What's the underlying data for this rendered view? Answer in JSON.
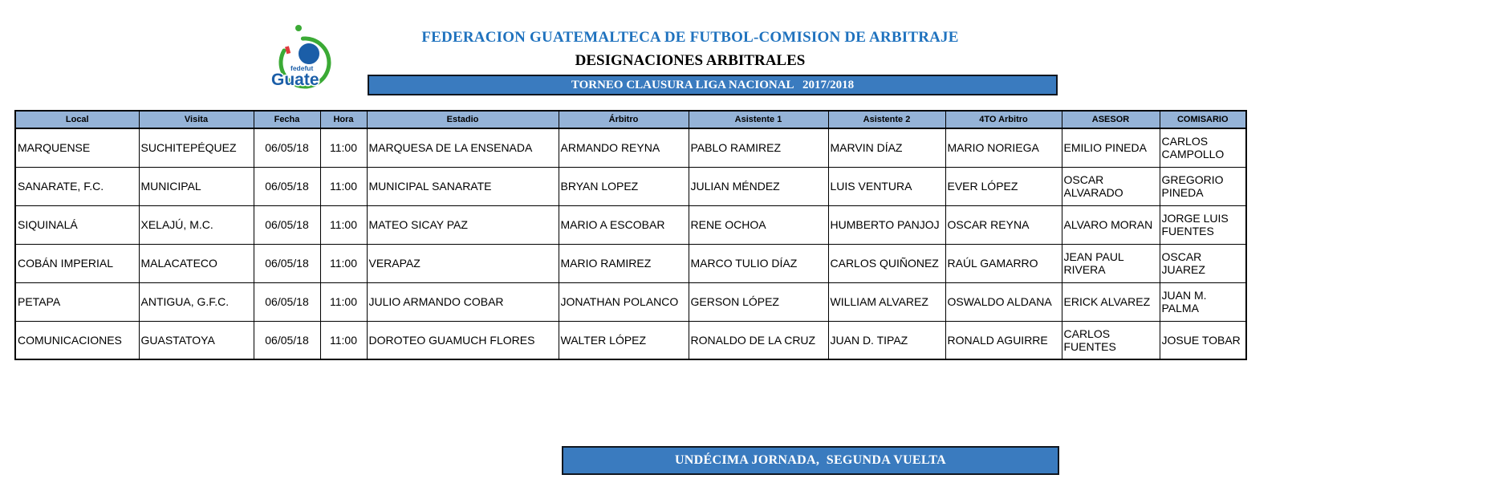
{
  "header": {
    "title": "FEDERACION GUATEMALTECA DE FUTBOL-COMISION DE ARBITRAJE",
    "subtitle": "DESIGNACIONES ARBITRALES",
    "tournament_banner": "TORNEO CLAUSURA LIGA NACIONAL   2017/2018",
    "logo": {
      "top_text": "fedefut",
      "main_text": "Guate"
    }
  },
  "table": {
    "columns": [
      "Local",
      "Visita",
      "Fecha",
      "Hora",
      "Estadio",
      "Árbitro",
      "Asistente 1",
      "Asistente 2",
      "4TO Arbitro",
      "ASESOR",
      "COMISARIO"
    ],
    "rows": [
      [
        "MARQUENSE",
        "SUCHITEPÉQUEZ",
        "06/05/18",
        "11:00",
        "MARQUESA DE LA ENSENADA",
        "ARMANDO REYNA",
        "PABLO RAMIREZ",
        "MARVIN DÍAZ",
        "MARIO NORIEGA",
        "EMILIO PINEDA",
        "CARLOS CAMPOLLO"
      ],
      [
        "SANARATE, F.C.",
        "MUNICIPAL",
        "06/05/18",
        "11:00",
        "MUNICIPAL SANARATE",
        "BRYAN LOPEZ",
        "JULIAN MÉNDEZ",
        "LUIS VENTURA",
        "EVER LÓPEZ",
        "OSCAR ALVARADO",
        "GREGORIO PINEDA"
      ],
      [
        "SIQUINALÁ",
        "XELAJÚ, M.C.",
        "06/05/18",
        "11:00",
        "MATEO SICAY PAZ",
        "MARIO A ESCOBAR",
        "RENE OCHOA",
        "HUMBERTO PANJOJ",
        "OSCAR REYNA",
        "ALVARO MORAN",
        "JORGE LUIS FUENTES"
      ],
      [
        "COBÁN IMPERIAL",
        "MALACATECO",
        "06/05/18",
        "11:00",
        "VERAPAZ",
        "MARIO RAMIREZ",
        "MARCO TULIO DÍAZ",
        "CARLOS QUIÑONEZ",
        "RAÚL GAMARRO",
        "JEAN PAUL RIVERA",
        "OSCAR JUAREZ"
      ],
      [
        "PETAPA",
        "ANTIGUA, G.F.C.",
        "06/05/18",
        "11:00",
        "JULIO ARMANDO COBAR",
        "JONATHAN POLANCO",
        "GERSON LÓPEZ",
        "WILLIAM ALVAREZ",
        "OSWALDO ALDANA",
        "ERICK ALVAREZ",
        "JUAN M. PALMA"
      ],
      [
        "COMUNICACIONES",
        "GUASTATOYA",
        "06/05/18",
        "11:00",
        "DOROTEO GUAMUCH FLORES",
        "WALTER LÓPEZ",
        "RONALDO DE LA CRUZ",
        "JUAN D. TIPAZ",
        "RONALD AGUIRRE",
        "CARLOS FUENTES",
        "JOSUE TOBAR"
      ]
    ]
  },
  "footer": {
    "jornada_banner": "UNDÉCIMA JORNADA,  SEGUNDA VUELTA"
  },
  "colors": {
    "banner_blue": "#3A7BBF",
    "banner_border": "#10161F",
    "header_fill": "#95B3D7",
    "title_blue": "#1F72BE",
    "logo_green": "#3BAA35",
    "logo_blue": "#1B5EA8",
    "logo_red": "#E03A3E"
  }
}
